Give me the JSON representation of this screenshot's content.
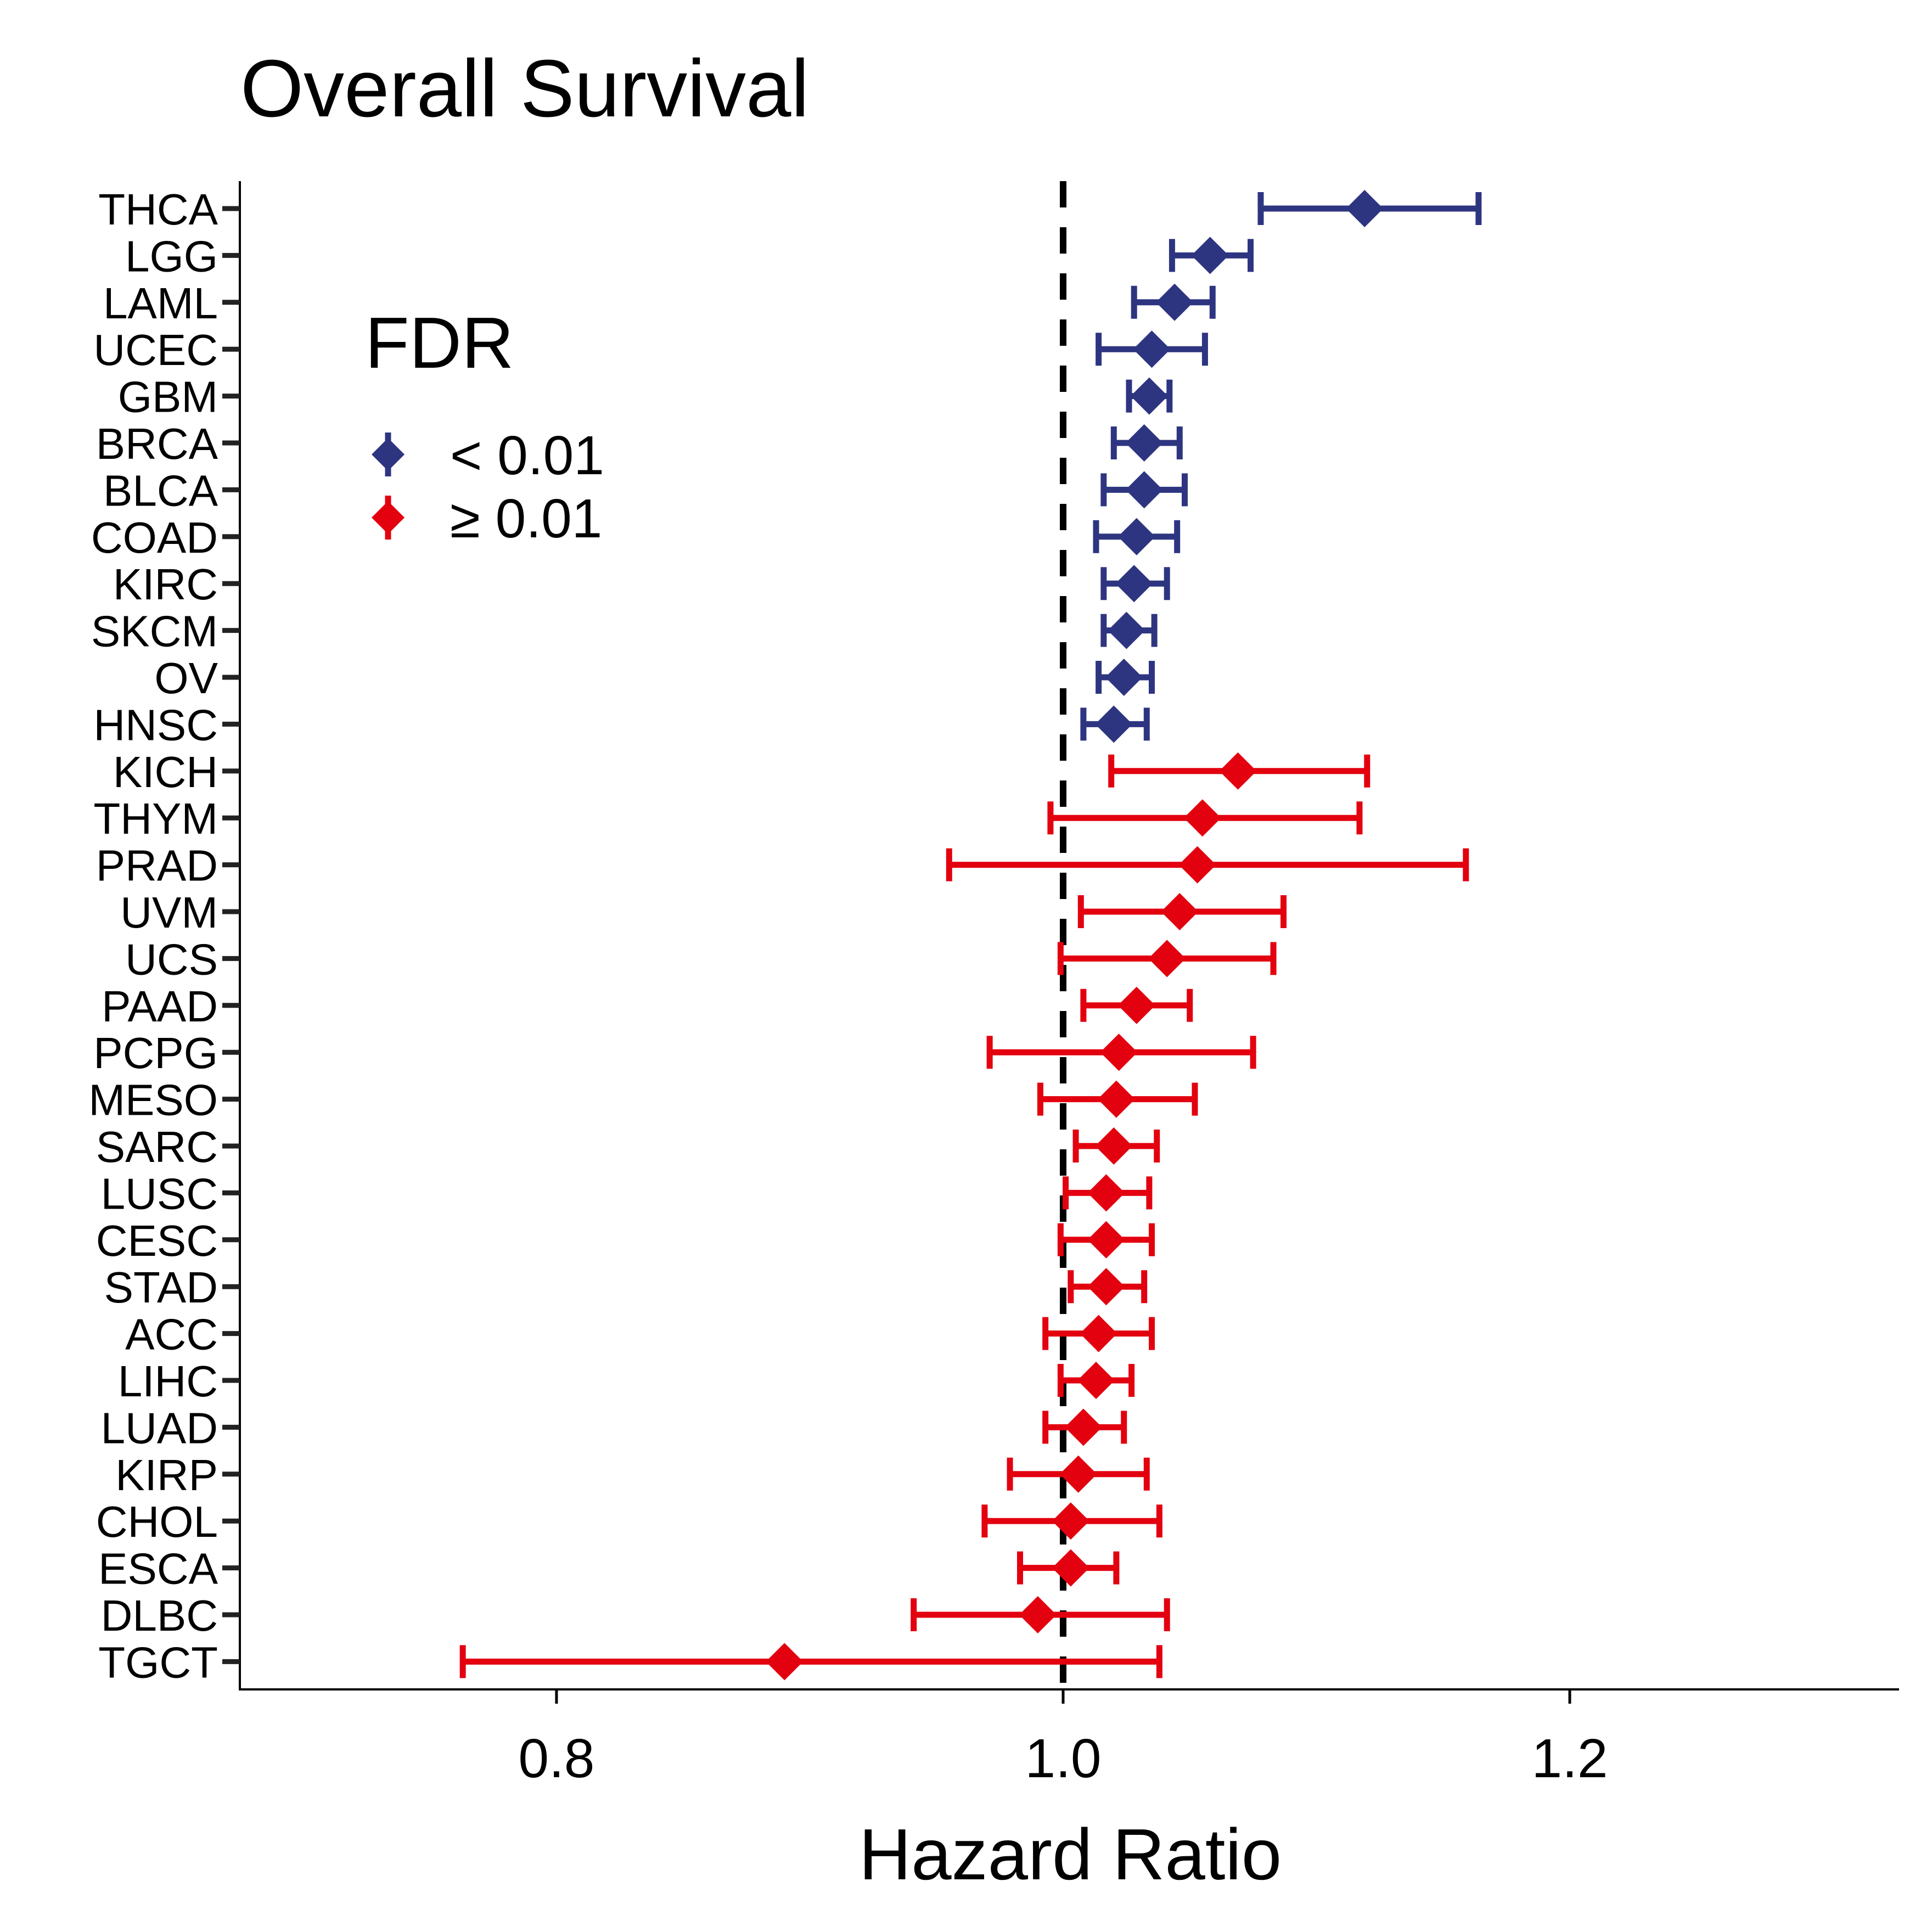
{
  "chart_data": {
    "type": "forest",
    "title": "Overall Survival",
    "xlabel": "Hazard Ratio",
    "ylabel": "",
    "xlim": [
      0.675,
      1.33
    ],
    "xticks": [
      0.8,
      1.0,
      1.2
    ],
    "xtick_labels": [
      "0.8",
      "1.0",
      "1.2"
    ],
    "reference_line": 1.0,
    "grid": false,
    "legend": {
      "title": "FDR",
      "placement": "top-left",
      "entries": [
        {
          "key": "low",
          "label": "< 0.01",
          "color": "#2E3580"
        },
        {
          "key": "high",
          "label": "≥ 0.01",
          "color": "#E3000F"
        }
      ]
    },
    "rows": [
      {
        "label": "THCA",
        "hr": 1.119,
        "lo": 1.078,
        "hi": 1.164,
        "group": "low"
      },
      {
        "label": "LGG",
        "hr": 1.058,
        "lo": 1.043,
        "hi": 1.074,
        "group": "low"
      },
      {
        "label": "LAML",
        "hr": 1.044,
        "lo": 1.028,
        "hi": 1.059,
        "group": "low"
      },
      {
        "label": "UCEC",
        "hr": 1.035,
        "lo": 1.014,
        "hi": 1.056,
        "group": "low"
      },
      {
        "label": "GBM",
        "hr": 1.034,
        "lo": 1.026,
        "hi": 1.042,
        "group": "low"
      },
      {
        "label": "BRCA",
        "hr": 1.032,
        "lo": 1.02,
        "hi": 1.046,
        "group": "low"
      },
      {
        "label": "BLCA",
        "hr": 1.032,
        "lo": 1.016,
        "hi": 1.048,
        "group": "low"
      },
      {
        "label": "COAD",
        "hr": 1.029,
        "lo": 1.013,
        "hi": 1.045,
        "group": "low"
      },
      {
        "label": "KIRC",
        "hr": 1.028,
        "lo": 1.016,
        "hi": 1.041,
        "group": "low"
      },
      {
        "label": "SKCM",
        "hr": 1.025,
        "lo": 1.016,
        "hi": 1.036,
        "group": "low"
      },
      {
        "label": "OV",
        "hr": 1.024,
        "lo": 1.014,
        "hi": 1.035,
        "group": "low"
      },
      {
        "label": "HNSC",
        "hr": 1.02,
        "lo": 1.008,
        "hi": 1.033,
        "group": "low"
      },
      {
        "label": "KICH",
        "hr": 1.069,
        "lo": 1.019,
        "hi": 1.12,
        "group": "high"
      },
      {
        "label": "THYM",
        "hr": 1.055,
        "lo": 0.995,
        "hi": 1.117,
        "group": "high"
      },
      {
        "label": "PRAD",
        "hr": 1.053,
        "lo": 0.955,
        "hi": 1.159,
        "group": "high"
      },
      {
        "label": "UVM",
        "hr": 1.046,
        "lo": 1.007,
        "hi": 1.087,
        "group": "high"
      },
      {
        "label": "UCS",
        "hr": 1.041,
        "lo": 0.999,
        "hi": 1.083,
        "group": "high"
      },
      {
        "label": "PAAD",
        "hr": 1.029,
        "lo": 1.008,
        "hi": 1.05,
        "group": "high"
      },
      {
        "label": "PCPG",
        "hr": 1.022,
        "lo": 0.971,
        "hi": 1.075,
        "group": "high"
      },
      {
        "label": "MESO",
        "hr": 1.021,
        "lo": 0.991,
        "hi": 1.052,
        "group": "high"
      },
      {
        "label": "SARC",
        "hr": 1.02,
        "lo": 1.005,
        "hi": 1.037,
        "group": "high"
      },
      {
        "label": "LUSC",
        "hr": 1.017,
        "lo": 1.001,
        "hi": 1.034,
        "group": "high"
      },
      {
        "label": "CESC",
        "hr": 1.017,
        "lo": 0.999,
        "hi": 1.035,
        "group": "high"
      },
      {
        "label": "STAD",
        "hr": 1.017,
        "lo": 1.003,
        "hi": 1.032,
        "group": "high"
      },
      {
        "label": "ACC",
        "hr": 1.014,
        "lo": 0.993,
        "hi": 1.035,
        "group": "high"
      },
      {
        "label": "LIHC",
        "hr": 1.013,
        "lo": 0.999,
        "hi": 1.027,
        "group": "high"
      },
      {
        "label": "LUAD",
        "hr": 1.008,
        "lo": 0.993,
        "hi": 1.024,
        "group": "high"
      },
      {
        "label": "KIRP",
        "hr": 1.006,
        "lo": 0.979,
        "hi": 1.033,
        "group": "high"
      },
      {
        "label": "CHOL",
        "hr": 1.003,
        "lo": 0.969,
        "hi": 1.038,
        "group": "high"
      },
      {
        "label": "ESCA",
        "hr": 1.003,
        "lo": 0.983,
        "hi": 1.021,
        "group": "high"
      },
      {
        "label": "DLBC",
        "hr": 0.99,
        "lo": 0.941,
        "hi": 1.041,
        "group": "high"
      },
      {
        "label": "TGCT",
        "hr": 0.89,
        "lo": 0.763,
        "hi": 1.038,
        "group": "high"
      }
    ]
  }
}
